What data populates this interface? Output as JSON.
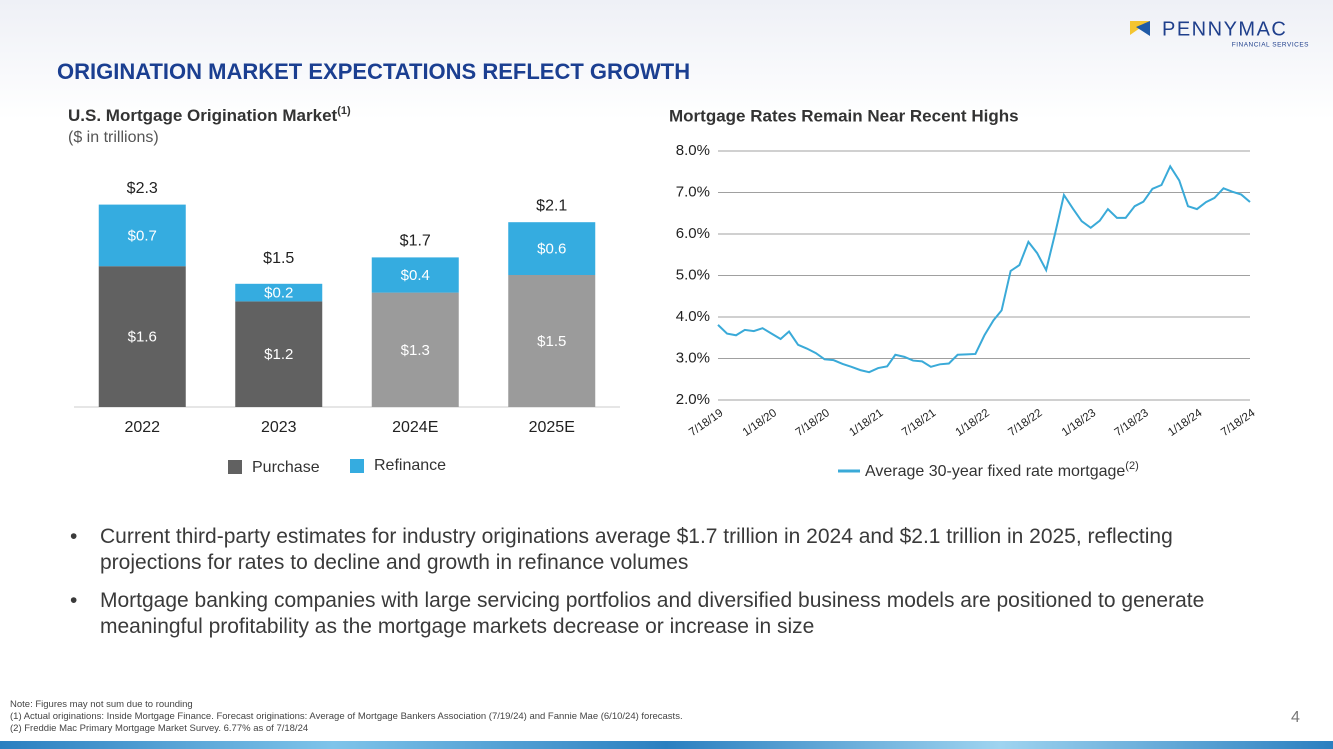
{
  "header": {
    "title": "ORIGINATION MARKET EXPECTATIONS REFLECT GROWTH",
    "logo": "PENNYMAC",
    "logo_tagline": "FINANCIAL SERVICES"
  },
  "chart_data": [
    {
      "type": "bar",
      "stacked": true,
      "title": "U.S. Mortgage Origination Market",
      "title_note": "(1)",
      "subtitle": "($ in trillions)",
      "categories": [
        "2022",
        "2023",
        "2024E",
        "2025E"
      ],
      "series": [
        {
          "name": "Purchase",
          "color": "#616161",
          "colors": [
            "#616161",
            "#616161",
            "#9b9b9b",
            "#9b9b9b"
          ],
          "values": [
            1.6,
            1.2,
            1.3,
            1.5
          ],
          "value_labels": [
            "$1.6",
            "$1.2",
            "$1.3",
            "$1.5"
          ]
        },
        {
          "name": "Refinance",
          "color": "#35ace0",
          "colors": [
            "#35ace0",
            "#35ace0",
            "#35ace0",
            "#35ace0"
          ],
          "values": [
            0.7,
            0.2,
            0.4,
            0.6
          ],
          "value_labels": [
            "$0.7",
            "$0.2",
            "$0.4",
            "$0.6"
          ]
        }
      ],
      "totals": [
        2.3,
        1.5,
        1.7,
        2.1
      ],
      "total_labels": [
        "$2.3",
        "$1.5",
        "$1.7",
        "$2.1"
      ]
    },
    {
      "type": "line",
      "title": "Mortgage Rates Remain Near Recent Highs",
      "x": [
        "7/18/19",
        "8/18/19",
        "9/18/19",
        "10/18/19",
        "11/18/19",
        "12/18/19",
        "1/18/20",
        "2/18/20",
        "3/18/20",
        "4/18/20",
        "5/18/20",
        "6/18/20",
        "7/18/20",
        "8/18/20",
        "9/18/20",
        "10/18/20",
        "11/18/20",
        "12/18/20",
        "1/18/21",
        "2/18/21",
        "3/18/21",
        "4/18/21",
        "5/18/21",
        "6/18/21",
        "7/18/21",
        "8/18/21",
        "9/18/21",
        "10/18/21",
        "11/18/21",
        "12/18/21",
        "1/18/22",
        "2/18/22",
        "3/18/22",
        "4/18/22",
        "5/18/22",
        "6/18/22",
        "7/18/22",
        "8/18/22",
        "9/18/22",
        "10/18/22",
        "11/18/22",
        "12/18/22",
        "1/18/23",
        "2/18/23",
        "3/18/23",
        "4/18/23",
        "5/18/23",
        "6/18/23",
        "7/18/23",
        "8/18/23",
        "9/18/23",
        "10/18/23",
        "11/18/23",
        "12/18/23",
        "1/18/24",
        "2/18/24",
        "3/18/24",
        "4/18/24",
        "5/18/24",
        "6/18/24",
        "7/18/24"
      ],
      "series": [
        {
          "name": "Average 30-year fixed rate mortgage",
          "name_note": "(2)",
          "color": "#3aaad8",
          "values": [
            3.81,
            3.6,
            3.56,
            3.69,
            3.66,
            3.73,
            3.6,
            3.47,
            3.65,
            3.33,
            3.24,
            3.13,
            2.98,
            2.96,
            2.87,
            2.8,
            2.72,
            2.67,
            2.77,
            2.81,
            3.09,
            3.04,
            2.95,
            2.93,
            2.8,
            2.86,
            2.88,
            3.09,
            3.1,
            3.11,
            3.56,
            3.92,
            4.16,
            5.11,
            5.25,
            5.81,
            5.54,
            5.13,
            6.02,
            6.94,
            6.61,
            6.31,
            6.15,
            6.32,
            6.6,
            6.39,
            6.39,
            6.67,
            6.78,
            7.09,
            7.18,
            7.63,
            7.29,
            6.67,
            6.6,
            6.77,
            6.87,
            7.1,
            7.02,
            6.95,
            6.77
          ]
        }
      ],
      "xlim": [
        "7/18/19",
        "7/18/24"
      ],
      "xticks": [
        "7/18/19",
        "1/18/20",
        "7/18/20",
        "1/18/21",
        "7/18/21",
        "1/18/22",
        "7/18/22",
        "1/18/23",
        "7/18/23",
        "1/18/24",
        "7/18/24"
      ],
      "ylim": [
        2,
        8
      ],
      "yticks": [
        {
          "value": 2,
          "label": "2.0%"
        },
        {
          "value": 3,
          "label": "3.0%"
        },
        {
          "value": 4,
          "label": "4.0%"
        },
        {
          "value": 5,
          "label": "5.0%"
        },
        {
          "value": 6,
          "label": "6.0%"
        },
        {
          "value": 7,
          "label": "7.0%"
        },
        {
          "value": 8,
          "label": "8.0%"
        }
      ],
      "grid": true
    }
  ],
  "bullets": [
    "Current third-party estimates for industry originations average $1.7 trillion in 2024 and $2.1 trillion in 2025, reflecting projections for rates to decline and growth in refinance volumes",
    "Mortgage banking companies with large servicing portfolios and diversified business models are positioned to generate meaningful profitability as the mortgage markets decrease or increase in size"
  ],
  "footnotes": [
    "Note: Figures may not sum due to rounding",
    "(1) Actual originations: Inside Mortgage Finance. Forecast originations: Average of Mortgage Bankers Association (7/19/24) and Fannie Mae (6/10/24) forecasts.",
    "(2) Freddie Mac Primary Mortgage Market Survey. 6.77% as of 7/18/24"
  ],
  "page_number": "4"
}
